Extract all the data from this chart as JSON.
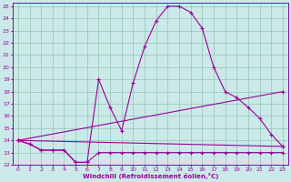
{
  "xlabel": "Windchill (Refroidissement éolien,°C)",
  "background_color": "#cbe9e9",
  "grid_color": "#99ccbb",
  "line_color": "#990099",
  "xlim": [
    -0.5,
    23.5
  ],
  "ylim": [
    12,
    25.3
  ],
  "xticks": [
    0,
    1,
    2,
    3,
    4,
    5,
    6,
    7,
    8,
    9,
    10,
    11,
    12,
    13,
    14,
    15,
    16,
    17,
    18,
    19,
    20,
    21,
    22,
    23
  ],
  "yticks": [
    12,
    13,
    14,
    15,
    16,
    17,
    18,
    19,
    20,
    21,
    22,
    23,
    24,
    25
  ],
  "series1_x": [
    0,
    1,
    2,
    3,
    4,
    5,
    6,
    7,
    8,
    9,
    10,
    11,
    12,
    13,
    14,
    15,
    16,
    17,
    18,
    19,
    20,
    21,
    22,
    23
  ],
  "series1_y": [
    14.0,
    13.7,
    13.2,
    13.2,
    13.2,
    12.2,
    12.2,
    19.0,
    16.7,
    14.8,
    18.7,
    21.7,
    23.8,
    25.0,
    25.0,
    24.5,
    23.2,
    20.0,
    18.0,
    17.5,
    16.7,
    15.8,
    14.5,
    13.5
  ],
  "series2_x": [
    0,
    1,
    2,
    3,
    4,
    5,
    6,
    7,
    8,
    9,
    10,
    11,
    12,
    13,
    14,
    15,
    16,
    17,
    18,
    19,
    20,
    21,
    22,
    23
  ],
  "series2_y": [
    14.0,
    13.7,
    13.2,
    13.2,
    13.2,
    12.2,
    12.2,
    13.0,
    13.0,
    13.0,
    13.0,
    13.0,
    13.0,
    13.0,
    13.0,
    13.0,
    13.0,
    13.0,
    13.0,
    13.0,
    13.0,
    13.0,
    13.0,
    13.0
  ],
  "series3_x": [
    0,
    23
  ],
  "series3_y": [
    14.0,
    18.0
  ],
  "series4_x": [
    0,
    23
  ],
  "series4_y": [
    14.0,
    13.5
  ]
}
